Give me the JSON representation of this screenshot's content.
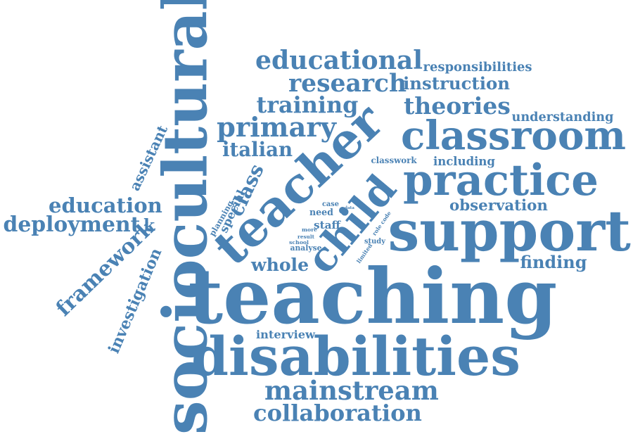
{
  "accent_color": "#4a82b4",
  "words": {
    "teaching": "teaching",
    "sociocultural": "sociocultural",
    "disabilities": "disabilities",
    "support": "support",
    "teacher": "teacher",
    "practice": "practice",
    "classroom": "classroom",
    "child": "child",
    "educational": "educational",
    "mainstream": "mainstream",
    "collaboration": "collaboration",
    "primary": "primary",
    "training": "training",
    "theories": "theories",
    "research": "research",
    "instruction": "instruction",
    "responsibilities": "responsibilities",
    "understanding": "understanding",
    "italian": "italian",
    "education": "education",
    "deployment": "deployment",
    "framework": "framework",
    "investigation": "investigation",
    "assistant": "assistant",
    "observation": "observation",
    "finding": "finding",
    "whole": "whole",
    "interview": "interview",
    "including": "including",
    "classwork": "classwork",
    "class": "class",
    "special": "special",
    "planning": "planning",
    "staff": "staff",
    "need": "need",
    "case": "case",
    "data": "data",
    "more": "more",
    "result": "result",
    "school": "school",
    "analyse": "analyse",
    "study": "study",
    "limited": "limited",
    "role_code": "role code",
    "k": "k"
  }
}
